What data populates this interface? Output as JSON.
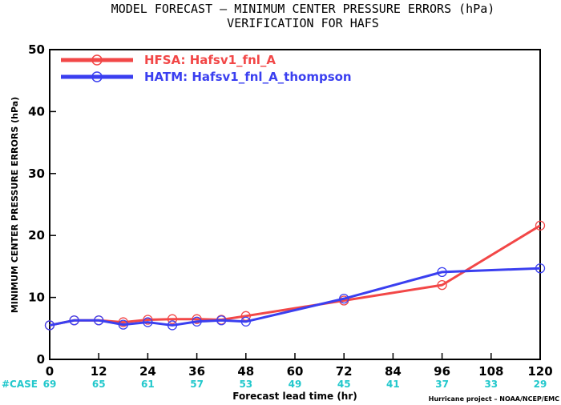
{
  "title_line1": "MODEL FORECAST – MINIMUM CENTER PRESSURE ERRORS (hPa)",
  "title_line2": "VERIFICATION FOR HAFS",
  "credit": "Hurricane project – NOAA/NCEP/EMC",
  "case_label": "#CASE",
  "colors": {
    "case": "#22c8cc",
    "hfsa": "#f24747",
    "hatm": "#3a3ff0"
  },
  "chart_data": {
    "type": "line",
    "xlabel": "Forecast lead time (hr)",
    "ylabel": "MINIMUM CENTER PRESSURE ERRORS (hPa)",
    "xlim": [
      0,
      120
    ],
    "ylim": [
      0,
      50
    ],
    "x_ticks": [
      0,
      12,
      24,
      36,
      48,
      60,
      72,
      84,
      96,
      108,
      120
    ],
    "y_ticks": [
      0,
      10,
      20,
      30,
      40,
      50
    ],
    "case_counts": [
      {
        "x": 0,
        "n": "69"
      },
      {
        "x": 12,
        "n": "65"
      },
      {
        "x": 24,
        "n": "61"
      },
      {
        "x": 36,
        "n": "57"
      },
      {
        "x": 48,
        "n": "53"
      },
      {
        "x": 60,
        "n": "49"
      },
      {
        "x": 72,
        "n": "45"
      },
      {
        "x": 84,
        "n": "41"
      },
      {
        "x": 96,
        "n": "37"
      },
      {
        "x": 108,
        "n": "33"
      },
      {
        "x": 120,
        "n": "29"
      }
    ],
    "series": [
      {
        "name": "HFSA: Hafsv1_fnl_A",
        "color": "#f24747",
        "x": [
          0,
          6,
          12,
          18,
          24,
          30,
          36,
          42,
          48,
          72,
          96,
          120
        ],
        "y": [
          5.5,
          6.3,
          6.3,
          6.0,
          6.4,
          6.5,
          6.5,
          6.4,
          7.0,
          9.5,
          12.0,
          21.6
        ]
      },
      {
        "name": "HATM: Hafsv1_fnl_A_thompson",
        "color": "#3a3ff0",
        "x": [
          0,
          6,
          12,
          18,
          24,
          30,
          36,
          42,
          48,
          72,
          96,
          120
        ],
        "y": [
          5.5,
          6.3,
          6.3,
          5.6,
          6.0,
          5.5,
          6.1,
          6.3,
          6.1,
          9.8,
          14.1,
          14.7
        ]
      }
    ]
  }
}
